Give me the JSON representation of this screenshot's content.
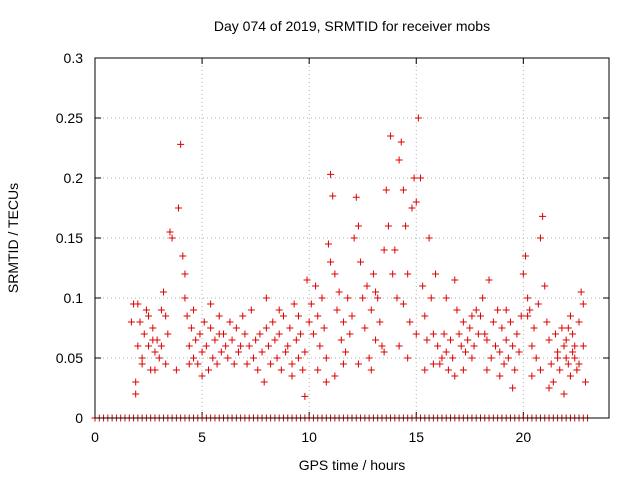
{
  "chart_data": {
    "type": "scatter",
    "title": "Day 074 of 2019, SRMTID for receiver mobs",
    "xlabel": "GPS time / hours",
    "ylabel": "SRMTID / TECUs",
    "xlim": [
      0,
      24
    ],
    "ylim": [
      0,
      0.3
    ],
    "xticks": [
      0,
      5,
      10,
      15,
      20
    ],
    "yticks": [
      0,
      0.05,
      0.1,
      0.15,
      0.2,
      0.25,
      0.3
    ],
    "xtick_labels": [
      "0",
      "5",
      "10",
      "15",
      "20"
    ],
    "ytick_labels": [
      "0",
      "0.05",
      "0.1",
      "0.15",
      "0.2",
      "0.25",
      "0.3"
    ],
    "grid": true,
    "marker": "+",
    "color": "#dd0000",
    "series": [
      {
        "name": "SRMTID",
        "points": [
          [
            1.7,
            0.08
          ],
          [
            1.8,
            0.095
          ],
          [
            1.9,
            0.03
          ],
          [
            2.0,
            0.06
          ],
          [
            2.1,
            0.08
          ],
          [
            2.2,
            0.05
          ],
          [
            2.3,
            0.07
          ],
          [
            2.4,
            0.09
          ],
          [
            2.5,
            0.06
          ],
          [
            2.6,
            0.04
          ],
          [
            2.7,
            0.075
          ],
          [
            2.8,
            0.055
          ],
          [
            2.9,
            0.065
          ],
          [
            3.0,
            0.05
          ],
          [
            3.1,
            0.09
          ],
          [
            3.2,
            0.105
          ],
          [
            3.3,
            0.085
          ],
          [
            3.4,
            0.07
          ],
          [
            3.5,
            0.155
          ],
          [
            3.6,
            0.15
          ],
          [
            1.9,
            0.02
          ],
          [
            2.2,
            0.045
          ],
          [
            2.5,
            0.085
          ],
          [
            2.8,
            0.04
          ],
          [
            3.1,
            0.06
          ],
          [
            3.3,
            0.045
          ],
          [
            2.0,
            0.095
          ],
          [
            2.7,
            0.065
          ],
          [
            3.8,
            0.04
          ],
          [
            3.9,
            0.175
          ],
          [
            4.0,
            0.228
          ],
          [
            4.1,
            0.135
          ],
          [
            4.2,
            0.12
          ],
          [
            4.3,
            0.085
          ],
          [
            4.4,
            0.06
          ],
          [
            4.5,
            0.075
          ],
          [
            4.6,
            0.05
          ],
          [
            4.7,
            0.065
          ],
          [
            4.8,
            0.045
          ],
          [
            4.9,
            0.07
          ],
          [
            5.0,
            0.055
          ],
          [
            5.1,
            0.08
          ],
          [
            5.2,
            0.06
          ],
          [
            5.3,
            0.04
          ],
          [
            5.4,
            0.075
          ],
          [
            5.5,
            0.05
          ],
          [
            5.6,
            0.065
          ],
          [
            5.7,
            0.045
          ],
          [
            5.8,
            0.07
          ],
          [
            5.9,
            0.055
          ],
          [
            4.2,
            0.1
          ],
          [
            4.6,
            0.09
          ],
          [
            5.0,
            0.035
          ],
          [
            5.4,
            0.095
          ],
          [
            5.8,
            0.085
          ],
          [
            4.4,
            0.045
          ],
          [
            6.0,
            0.07
          ],
          [
            6.1,
            0.06
          ],
          [
            6.2,
            0.05
          ],
          [
            6.3,
            0.08
          ],
          [
            6.4,
            0.065
          ],
          [
            6.5,
            0.045
          ],
          [
            6.6,
            0.075
          ],
          [
            6.7,
            0.055
          ],
          [
            6.8,
            0.06
          ],
          [
            6.9,
            0.085
          ],
          [
            7.0,
            0.07
          ],
          [
            7.1,
            0.045
          ],
          [
            7.2,
            0.06
          ],
          [
            7.3,
            0.09
          ],
          [
            7.4,
            0.05
          ],
          [
            7.5,
            0.065
          ],
          [
            7.6,
            0.04
          ],
          [
            7.7,
            0.07
          ],
          [
            7.8,
            0.055
          ],
          [
            7.9,
            0.03
          ],
          [
            8.0,
            0.075
          ],
          [
            8.1,
            0.06
          ],
          [
            8.2,
            0.045
          ],
          [
            8.3,
            0.08
          ],
          [
            8.4,
            0.065
          ],
          [
            8.5,
            0.05
          ],
          [
            8.6,
            0.07
          ],
          [
            8.7,
            0.04
          ],
          [
            8.8,
            0.085
          ],
          [
            8.9,
            0.055
          ],
          [
            9.0,
            0.06
          ],
          [
            9.1,
            0.075
          ],
          [
            9.2,
            0.045
          ],
          [
            9.3,
            0.095
          ],
          [
            9.4,
            0.065
          ],
          [
            9.5,
            0.05
          ],
          [
            9.6,
            0.07
          ],
          [
            9.7,
            0.04
          ],
          [
            9.8,
            0.055
          ],
          [
            9.9,
            0.115
          ],
          [
            8.0,
            0.1
          ],
          [
            8.6,
            0.09
          ],
          [
            9.2,
            0.035
          ],
          [
            9.8,
            0.018
          ],
          [
            9.5,
            0.085
          ],
          [
            10.0,
            0.08
          ],
          [
            10.1,
            0.095
          ],
          [
            10.2,
            0.07
          ],
          [
            10.3,
            0.11
          ],
          [
            10.4,
            0.085
          ],
          [
            10.5,
            0.06
          ],
          [
            10.6,
            0.1
          ],
          [
            10.7,
            0.075
          ],
          [
            10.8,
            0.05
          ],
          [
            10.9,
            0.145
          ],
          [
            11.0,
            0.203
          ],
          [
            11.1,
            0.185
          ],
          [
            11.2,
            0.12
          ],
          [
            11.3,
            0.09
          ],
          [
            11.4,
            0.105
          ],
          [
            11.5,
            0.065
          ],
          [
            11.6,
            0.08
          ],
          [
            11.7,
            0.055
          ],
          [
            11.8,
            0.1
          ],
          [
            11.9,
            0.07
          ],
          [
            10.4,
            0.04
          ],
          [
            10.8,
            0.03
          ],
          [
            11.2,
            0.035
          ],
          [
            11.6,
            0.045
          ],
          [
            11.0,
            0.13
          ],
          [
            12.0,
            0.085
          ],
          [
            12.1,
            0.15
          ],
          [
            12.2,
            0.184
          ],
          [
            12.3,
            0.16
          ],
          [
            12.4,
            0.13
          ],
          [
            12.5,
            0.1
          ],
          [
            12.6,
            0.075
          ],
          [
            12.7,
            0.11
          ],
          [
            12.8,
            0.05
          ],
          [
            12.9,
            0.09
          ],
          [
            13.0,
            0.12
          ],
          [
            13.1,
            0.065
          ],
          [
            13.2,
            0.1
          ],
          [
            13.3,
            0.08
          ],
          [
            13.4,
            0.06
          ],
          [
            13.5,
            0.14
          ],
          [
            13.6,
            0.19
          ],
          [
            13.7,
            0.16
          ],
          [
            13.8,
            0.235
          ],
          [
            13.9,
            0.12
          ],
          [
            12.3,
            0.045
          ],
          [
            12.9,
            0.04
          ],
          [
            13.5,
            0.055
          ],
          [
            13.1,
            0.105
          ],
          [
            14.0,
            0.14
          ],
          [
            14.1,
            0.1
          ],
          [
            14.2,
            0.215
          ],
          [
            14.3,
            0.23
          ],
          [
            14.4,
            0.19
          ],
          [
            14.5,
            0.16
          ],
          [
            14.6,
            0.12
          ],
          [
            14.7,
            0.08
          ],
          [
            14.8,
            0.175
          ],
          [
            14.9,
            0.2
          ],
          [
            15.0,
            0.18
          ],
          [
            15.1,
            0.25
          ],
          [
            15.2,
            0.2
          ],
          [
            15.3,
            0.11
          ],
          [
            15.4,
            0.085
          ],
          [
            15.5,
            0.065
          ],
          [
            15.6,
            0.15
          ],
          [
            15.7,
            0.1
          ],
          [
            15.8,
            0.07
          ],
          [
            15.9,
            0.12
          ],
          [
            14.2,
            0.06
          ],
          [
            14.6,
            0.05
          ],
          [
            15.0,
            0.07
          ],
          [
            15.4,
            0.04
          ],
          [
            15.8,
            0.045
          ],
          [
            14.4,
            0.095
          ],
          [
            16.0,
            0.06
          ],
          [
            16.1,
            0.045
          ],
          [
            16.2,
            0.05
          ],
          [
            16.3,
            0.07
          ],
          [
            16.4,
            0.055
          ],
          [
            16.5,
            0.04
          ],
          [
            16.6,
            0.065
          ],
          [
            16.7,
            0.05
          ],
          [
            16.8,
            0.115
          ],
          [
            16.9,
            0.09
          ],
          [
            17.0,
            0.07
          ],
          [
            17.1,
            0.06
          ],
          [
            17.2,
            0.08
          ],
          [
            17.3,
            0.055
          ],
          [
            17.4,
            0.065
          ],
          [
            17.5,
            0.075
          ],
          [
            17.6,
            0.05
          ],
          [
            17.7,
            0.06
          ],
          [
            17.8,
            0.09
          ],
          [
            17.9,
            0.07
          ],
          [
            16.4,
            0.1
          ],
          [
            16.8,
            0.035
          ],
          [
            17.2,
            0.04
          ],
          [
            17.6,
            0.085
          ],
          [
            18.0,
            0.085
          ],
          [
            18.1,
            0.1
          ],
          [
            18.2,
            0.07
          ],
          [
            18.3,
            0.065
          ],
          [
            18.4,
            0.115
          ],
          [
            18.5,
            0.05
          ],
          [
            18.6,
            0.08
          ],
          [
            18.7,
            0.06
          ],
          [
            18.8,
            0.09
          ],
          [
            18.9,
            0.055
          ],
          [
            19.0,
            0.075
          ],
          [
            19.1,
            0.045
          ],
          [
            19.2,
            0.065
          ],
          [
            19.3,
            0.05
          ],
          [
            19.4,
            0.08
          ],
          [
            19.5,
            0.06
          ],
          [
            19.6,
            0.04
          ],
          [
            19.7,
            0.07
          ],
          [
            19.8,
            0.055
          ],
          [
            19.9,
            0.085
          ],
          [
            18.3,
            0.04
          ],
          [
            18.9,
            0.035
          ],
          [
            19.5,
            0.025
          ],
          [
            19.2,
            0.09
          ],
          [
            20.0,
            0.12
          ],
          [
            20.1,
            0.135
          ],
          [
            20.2,
            0.1
          ],
          [
            20.3,
            0.09
          ],
          [
            20.4,
            0.06
          ],
          [
            20.5,
            0.075
          ],
          [
            20.6,
            0.05
          ],
          [
            20.7,
            0.095
          ],
          [
            20.8,
            0.15
          ],
          [
            20.9,
            0.168
          ],
          [
            21.0,
            0.11
          ],
          [
            21.1,
            0.08
          ],
          [
            21.2,
            0.065
          ],
          [
            21.3,
            0.045
          ],
          [
            21.4,
            0.03
          ],
          [
            21.5,
            0.07
          ],
          [
            21.6,
            0.055
          ],
          [
            21.7,
            0.04
          ],
          [
            21.8,
            0.075
          ],
          [
            21.9,
            0.06
          ],
          [
            20.4,
            0.035
          ],
          [
            20.8,
            0.04
          ],
          [
            21.2,
            0.025
          ],
          [
            21.6,
            0.05
          ],
          [
            20.2,
            0.085
          ],
          [
            22.0,
            0.05
          ],
          [
            22.1,
            0.045
          ],
          [
            22.2,
            0.035
          ],
          [
            22.3,
            0.07
          ],
          [
            22.4,
            0.06
          ],
          [
            22.5,
            0.04
          ],
          [
            22.6,
            0.08
          ],
          [
            22.7,
            0.105
          ],
          [
            22.8,
            0.095
          ],
          [
            22.9,
            0.03
          ],
          [
            22.0,
            0.065
          ],
          [
            22.2,
            0.085
          ],
          [
            22.4,
            0.05
          ],
          [
            22.6,
            0.045
          ],
          [
            22.8,
            0.06
          ],
          [
            21.9,
            0.02
          ],
          [
            22.1,
            0.075
          ],
          [
            22.3,
            0.055
          ]
        ],
        "baseline_points": [
          0.0,
          0.2,
          0.4,
          0.6,
          0.8,
          1.0,
          1.2,
          1.4,
          1.6,
          1.8,
          2.0,
          2.2,
          2.4,
          2.6,
          2.8,
          3.0,
          3.2,
          3.4,
          3.6,
          3.8,
          4.0,
          4.2,
          4.4,
          4.6,
          4.8,
          5.0,
          5.2,
          5.4,
          5.6,
          5.8,
          6.0,
          6.2,
          6.4,
          6.6,
          6.8,
          7.0,
          7.2,
          7.4,
          7.6,
          7.8,
          8.0,
          8.2,
          8.4,
          8.6,
          8.8,
          9.0,
          9.2,
          9.4,
          9.6,
          9.8,
          10.0,
          10.2,
          10.4,
          10.6,
          10.8,
          11.0,
          11.2,
          11.4,
          11.6,
          11.8,
          12.0,
          12.2,
          12.4,
          12.6,
          12.8,
          13.0,
          13.2,
          13.4,
          13.6,
          13.8,
          14.0,
          14.2,
          14.4,
          14.6,
          14.8,
          15.0,
          15.2,
          15.4,
          15.6,
          15.8,
          16.0,
          16.2,
          16.4,
          16.6,
          16.8,
          17.0,
          17.2,
          17.4,
          17.6,
          17.8,
          18.0,
          18.2,
          18.4,
          18.6,
          18.8,
          19.0,
          19.2,
          19.4,
          19.6,
          19.8,
          20.0,
          20.2,
          20.4,
          20.6,
          20.8,
          21.0,
          21.2,
          21.4,
          21.6,
          21.8,
          22.0,
          22.2,
          22.4,
          22.6,
          22.8,
          23.0
        ]
      }
    ]
  }
}
